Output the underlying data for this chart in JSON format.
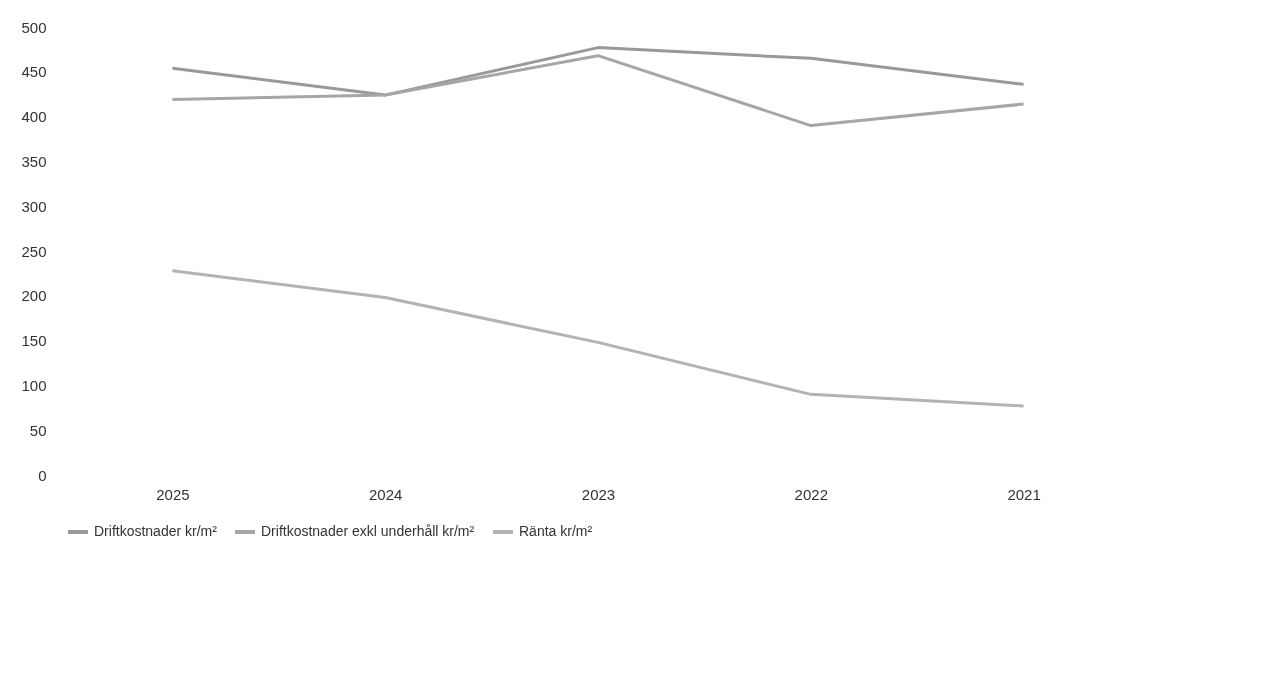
{
  "chart_data": {
    "type": "line",
    "categories": [
      "2025",
      "2024",
      "2023",
      "2022",
      "2021"
    ],
    "series": [
      {
        "name": "Driftkostnader kr/m²",
        "color": "#999999",
        "values": [
          454,
          424,
          477,
          465,
          436
        ]
      },
      {
        "name": "Driftkostnader exkl underhåll kr/m²",
        "color": "#a6a6a6",
        "values": [
          419,
          424,
          468,
          390,
          414
        ]
      },
      {
        "name": "Ränta kr/m²",
        "color": "#b3b3b3",
        "values": [
          228,
          198,
          148,
          90,
          77
        ]
      }
    ],
    "ylim": [
      0,
      500
    ],
    "yticks": [
      0,
      50,
      100,
      150,
      200,
      250,
      300,
      350,
      400,
      450,
      500
    ],
    "grid": false,
    "legend": "bottom",
    "marker": "none",
    "line_style": "solid"
  }
}
